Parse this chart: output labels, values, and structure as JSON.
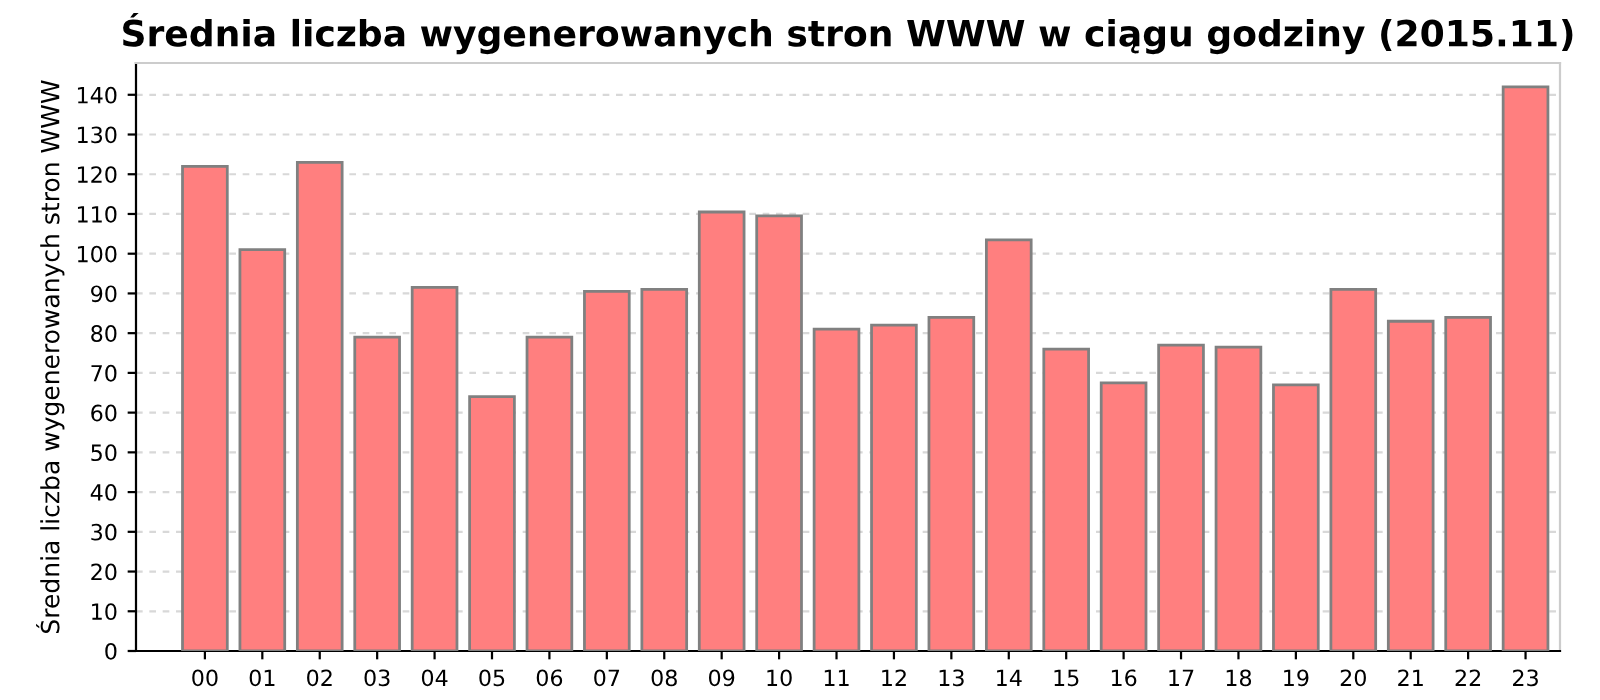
{
  "chart_data": {
    "type": "bar",
    "title": "Średnia liczba wygenerowanych stron WWW w ciągu godziny (2015.11)",
    "ylabel": "Średnia liczba wygenerowanych stron WWW",
    "categories": [
      "00",
      "01",
      "02",
      "03",
      "04",
      "05",
      "06",
      "07",
      "08",
      "09",
      "10",
      "11",
      "12",
      "13",
      "14",
      "15",
      "16",
      "17",
      "18",
      "19",
      "20",
      "21",
      "22",
      "23"
    ],
    "values": [
      122,
      101,
      123,
      79,
      91.5,
      64,
      79,
      90.5,
      91,
      110.5,
      109.5,
      81,
      82,
      84,
      103.5,
      76,
      67.5,
      77,
      76.5,
      67,
      91,
      83,
      84,
      142
    ],
    "color": "#ff7f7f",
    "ylim": [
      0,
      148
    ],
    "yticks": [
      0,
      10,
      20,
      30,
      40,
      50,
      60,
      70,
      80,
      90,
      100,
      110,
      120,
      130,
      140
    ],
    "grid": "y"
  }
}
